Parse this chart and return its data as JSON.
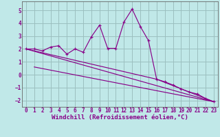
{
  "xlabel": "Windchill (Refroidissement éolien,°C)",
  "bg_color": "#c0e8e8",
  "grid_color": "#9bbfbf",
  "line_color": "#880088",
  "xlim": [
    -0.5,
    23.5
  ],
  "ylim": [
    -2.5,
    5.7
  ],
  "yticks": [
    -2,
    -1,
    0,
    1,
    2,
    3,
    4,
    5
  ],
  "xticks": [
    0,
    1,
    2,
    3,
    4,
    5,
    6,
    7,
    8,
    9,
    10,
    11,
    12,
    13,
    14,
    15,
    16,
    17,
    18,
    19,
    20,
    21,
    22,
    23
  ],
  "line1_x": [
    0,
    1,
    2,
    3,
    4,
    5,
    6,
    7,
    8,
    9,
    10,
    11,
    12,
    13,
    14,
    15,
    16,
    17,
    18,
    19,
    20,
    21,
    22,
    23
  ],
  "line1_y": [
    2.0,
    2.0,
    1.85,
    2.15,
    2.25,
    1.6,
    2.0,
    1.75,
    2.95,
    3.85,
    2.05,
    2.05,
    4.1,
    5.1,
    3.75,
    2.65,
    -0.35,
    -0.55,
    -0.8,
    -1.1,
    -1.35,
    -1.5,
    -1.85,
    -2.1
  ],
  "line2_x": [
    0,
    23
  ],
  "line2_y": [
    2.0,
    -2.1
  ],
  "line3_x": [
    0,
    16,
    23
  ],
  "line3_y": [
    2.0,
    -0.35,
    -2.1
  ],
  "line4_x": [
    1,
    23
  ],
  "line4_y": [
    0.6,
    -2.1
  ],
  "tick_fontsize": 5.5,
  "label_fontsize": 6.5
}
